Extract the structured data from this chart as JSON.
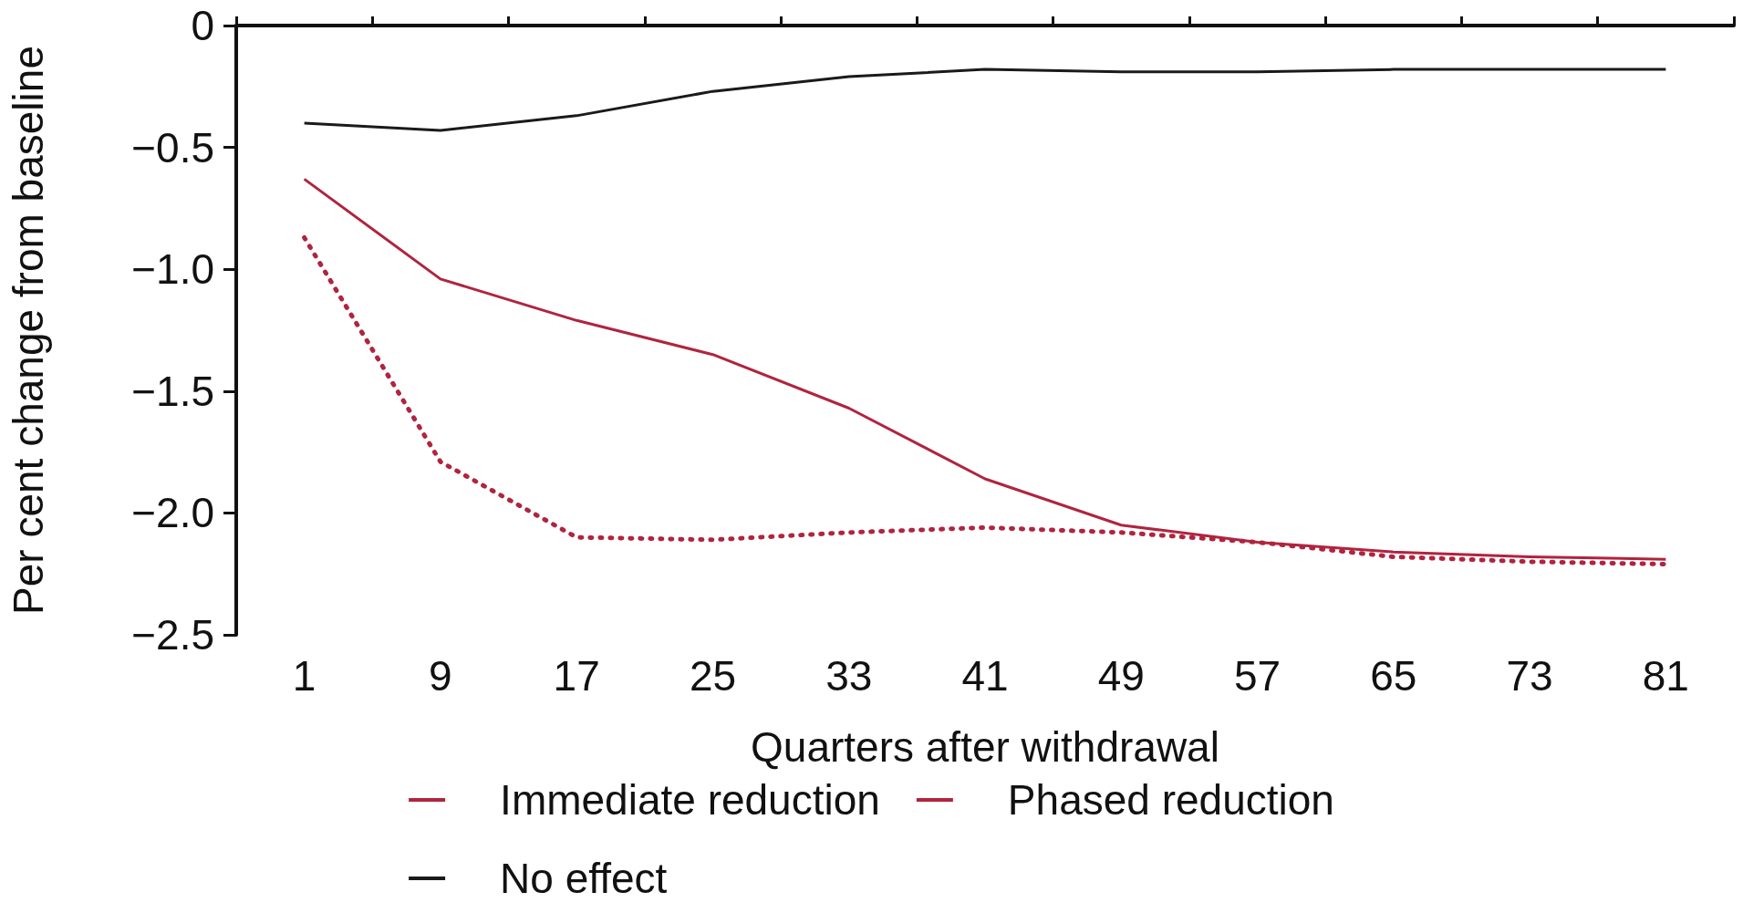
{
  "chart_data": {
    "type": "line",
    "xlabel": "Quarters after withdrawal",
    "ylabel": "Per cent change from baseline",
    "categories": [
      "1",
      "9",
      "17",
      "25",
      "33",
      "41",
      "49",
      "57",
      "65",
      "73",
      "81"
    ],
    "ylim": [
      -2.5,
      0
    ],
    "yticks": [
      {
        "value": -2.5,
        "label": "−2.5"
      },
      {
        "value": -2,
        "label": "−2.0"
      },
      {
        "value": -1.5,
        "label": "−1.5"
      },
      {
        "value": -1,
        "label": "−1.0"
      },
      {
        "value": -0.5,
        "label": "−0.5"
      },
      {
        "value": 0,
        "label": "0"
      }
    ],
    "grid": false,
    "legend": "bottom",
    "marker": "none",
    "series": [
      {
        "name": "Immediate reduction",
        "color": "#b0243f",
        "line_style": "dotted",
        "values": [
          -0.87,
          -1.79,
          -2.1,
          -2.11,
          -2.08,
          -2.06,
          -2.08,
          -2.12,
          -2.18,
          -2.2,
          -2.21
        ]
      },
      {
        "name": "Phased reduction",
        "color": "#b0243f",
        "line_style": "solid",
        "values": [
          -0.63,
          -1.04,
          -1.21,
          -1.35,
          -1.57,
          -1.86,
          -2.05,
          -2.12,
          -2.16,
          -2.18,
          -2.19
        ]
      },
      {
        "name": "No effect",
        "color": "#1a1a1a",
        "line_style": "solid",
        "values": [
          -0.4,
          -0.43,
          -0.37,
          -0.27,
          -0.21,
          -0.18,
          -0.19,
          -0.19,
          -0.18,
          -0.18,
          -0.18
        ]
      }
    ]
  }
}
